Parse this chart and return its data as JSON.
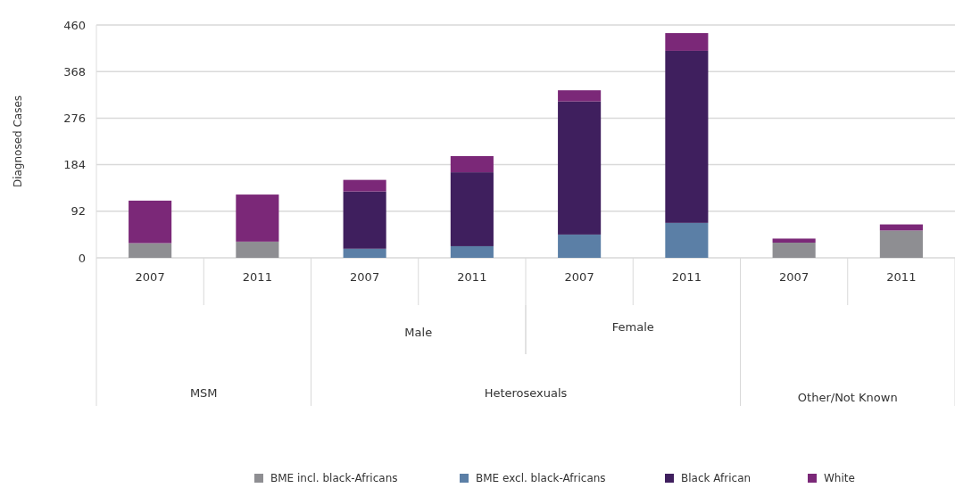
{
  "chart_data": {
    "type": "bar",
    "stacked": true,
    "ylabel": "Diagnosed Cases",
    "categories": [
      "2007",
      "2011",
      "2007",
      "2011",
      "2007",
      "2011",
      "2007",
      "2011"
    ],
    "series": [
      {
        "name": "BME incl. black-Africans",
        "color": "#8e8e92",
        "values": [
          29,
          32,
          null,
          null,
          null,
          null,
          30,
          54
        ]
      },
      {
        "name": "BME excl. black-Africans",
        "color": "#5b7fa6",
        "values": [
          null,
          null,
          18,
          23,
          46,
          69,
          null,
          null
        ]
      },
      {
        "name": "Black African",
        "color": "#3f1f5e",
        "values": [
          null,
          null,
          113,
          146,
          263,
          340,
          null,
          null
        ]
      },
      {
        "name": "White",
        "color": "#7b2878",
        "values": [
          84,
          93,
          23,
          32,
          22,
          35,
          8,
          12
        ]
      }
    ],
    "ylim": [
      0,
      460
    ],
    "yticks": [
      0,
      92,
      184,
      276,
      368,
      460
    ],
    "grid": "y",
    "legend": "bottom",
    "annotations": [
      "Male",
      "Female",
      "MSM",
      "Heterosexuals",
      "Other/Not Known"
    ]
  }
}
